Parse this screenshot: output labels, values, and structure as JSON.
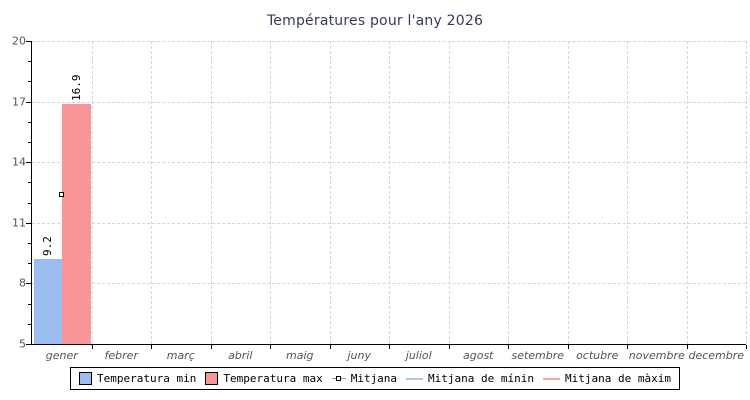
{
  "chart_data": {
    "type": "bar",
    "title": "Températures pour l'any 2026",
    "categories": [
      "gener",
      "febrer",
      "març",
      "abril",
      "maig",
      "juny",
      "juliol",
      "agost",
      "setembre",
      "octubre",
      "novembre",
      "decembre"
    ],
    "series": [
      {
        "name": "Temperatura min",
        "type": "bar",
        "color": "#9bbdf0",
        "values": [
          9.2,
          null,
          null,
          null,
          null,
          null,
          null,
          null,
          null,
          null,
          null,
          null
        ]
      },
      {
        "name": "Temperatura max",
        "type": "bar",
        "color": "#f79598",
        "values": [
          16.9,
          null,
          null,
          null,
          null,
          null,
          null,
          null,
          null,
          null,
          null,
          null
        ]
      },
      {
        "name": "Mitjana",
        "type": "point",
        "values": [
          12.4,
          null,
          null,
          null,
          null,
          null,
          null,
          null,
          null,
          null,
          null,
          null
        ]
      }
    ],
    "legend": [
      {
        "label": "Temperatura min",
        "swatch": "box",
        "color": "#9bbdf0"
      },
      {
        "label": "Temperatura max",
        "swatch": "box",
        "color": "#f79598"
      },
      {
        "label": "Mitjana",
        "swatch": "marker"
      },
      {
        "label": "Mitjana de mínin",
        "swatch": "line",
        "color": "#aac8e8"
      },
      {
        "label": "Mitjana de màxim",
        "swatch": "line",
        "color": "#f7a8a8"
      }
    ],
    "ylim": [
      5,
      20
    ],
    "yticks": [
      5,
      8,
      11,
      14,
      17,
      20
    ],
    "grid": "dashed",
    "legend_position": "bottom",
    "colors": {
      "grid": "#d6d6d6",
      "axis": "#000000",
      "title": "#363b63",
      "tick_label": "#555555"
    }
  }
}
